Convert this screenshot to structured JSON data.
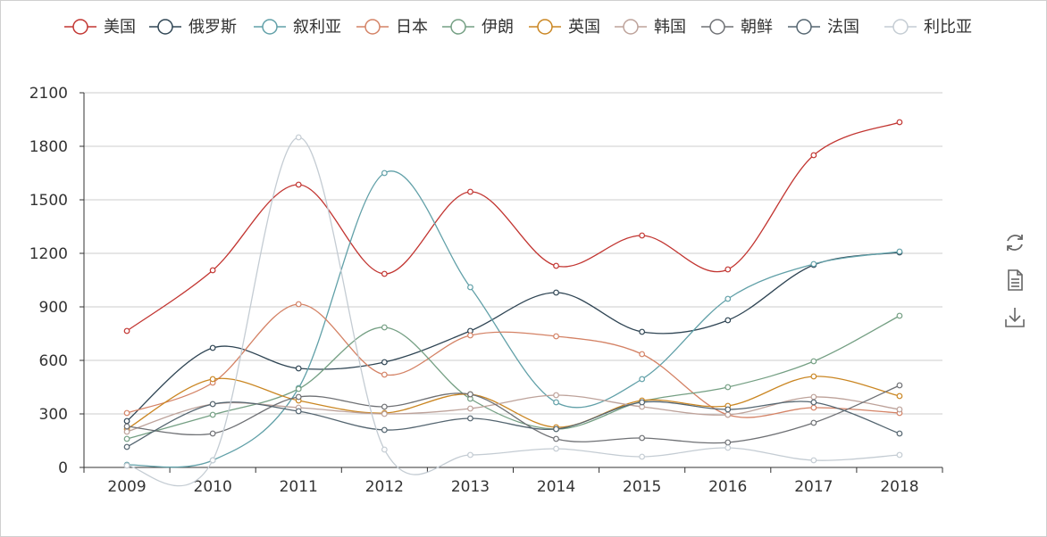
{
  "colors": {
    "美国": "#c23531",
    "俄罗斯": "#2f4554",
    "叙利亚": "#61a0a8",
    "日本": "#d48265",
    "伊朗": "#749f83",
    "英国": "#ca8622",
    "韩国": "#bda29a",
    "朝鲜": "#6e7074",
    "法国": "#546570",
    "利比亚": "#c4ccd3",
    "axis": "#333333",
    "grid": "#cccccc"
  },
  "toolbox": {
    "items": [
      {
        "name": "restore",
        "icon": "refresh-icon"
      },
      {
        "name": "data-view",
        "icon": "document-icon"
      },
      {
        "name": "save-as-image",
        "icon": "download-icon"
      }
    ]
  },
  "chart_data": {
    "type": "line",
    "smooth": true,
    "categories": [
      "2009",
      "2010",
      "2011",
      "2012",
      "2013",
      "2014",
      "2015",
      "2016",
      "2017",
      "2018"
    ],
    "ylim": [
      0,
      2100
    ],
    "yticks": [
      0,
      300,
      600,
      900,
      1200,
      1500,
      1800,
      2100
    ],
    "grid": true,
    "legend_position": "top",
    "series": [
      {
        "name": "美国",
        "values": [
          765,
          1105,
          1585,
          1085,
          1545,
          1130,
          1300,
          1110,
          1750,
          1935
        ]
      },
      {
        "name": "俄罗斯",
        "values": [
          260,
          670,
          555,
          590,
          765,
          980,
          760,
          825,
          1135,
          1205
        ]
      },
      {
        "name": "叙利亚",
        "values": [
          15,
          40,
          445,
          1650,
          1010,
          365,
          495,
          945,
          1140,
          1210
        ]
      },
      {
        "name": "日本",
        "values": [
          305,
          475,
          915,
          520,
          740,
          735,
          635,
          295,
          335,
          305
        ]
      },
      {
        "name": "伊朗",
        "values": [
          160,
          295,
          440,
          785,
          385,
          215,
          370,
          450,
          595,
          850
        ]
      },
      {
        "name": "英国",
        "values": [
          215,
          495,
          375,
          305,
          410,
          225,
          375,
          345,
          510,
          400
        ]
      },
      {
        "name": "韩国",
        "values": [
          200,
          355,
          335,
          300,
          330,
          405,
          340,
          295,
          395,
          325
        ]
      },
      {
        "name": "朝鲜",
        "values": [
          230,
          190,
          395,
          340,
          410,
          160,
          165,
          140,
          250,
          460
        ]
      },
      {
        "name": "法国",
        "values": [
          115,
          355,
          315,
          210,
          275,
          215,
          365,
          325,
          365,
          190
        ]
      },
      {
        "name": "利比亚",
        "values": [
          10,
          40,
          1850,
          100,
          70,
          105,
          60,
          110,
          40,
          70
        ]
      }
    ]
  }
}
